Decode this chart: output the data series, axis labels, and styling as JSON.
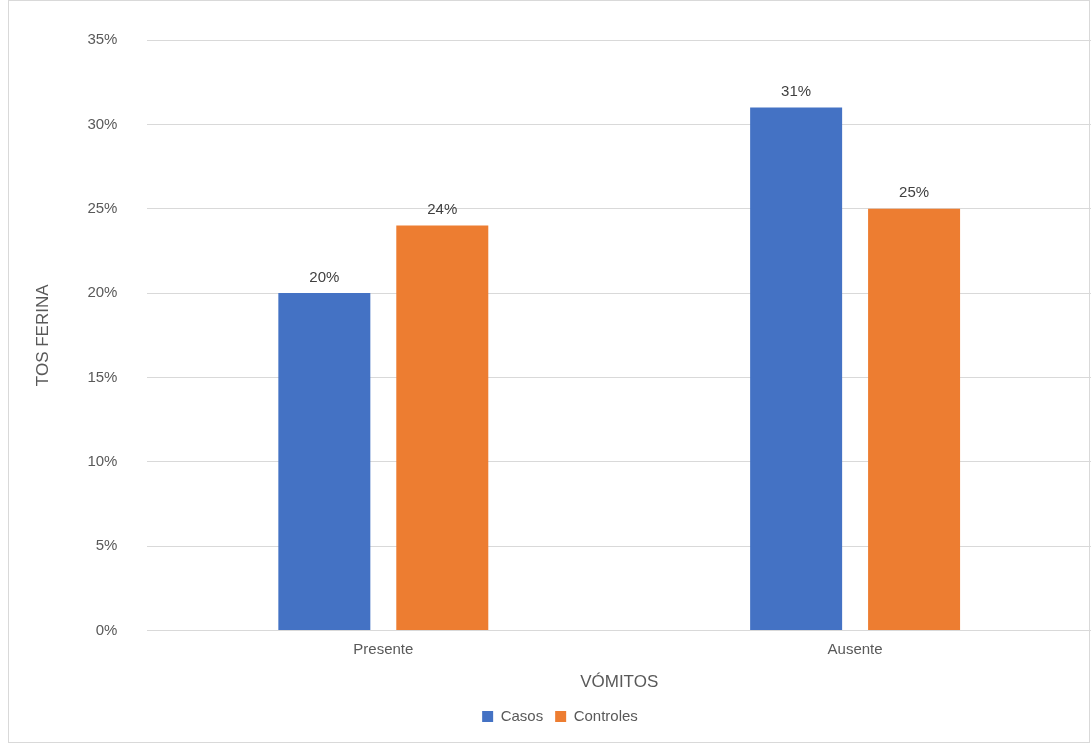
{
  "chart_data": {
    "type": "bar",
    "xlabel": "VÓMITOS",
    "ylabel": "TOS FERINA",
    "categories": [
      "Presente",
      "Ausente"
    ],
    "series": [
      {
        "name": "Casos",
        "color": "#4472c4",
        "values": [
          20,
          31
        ],
        "value_labels": [
          "20%",
          "31%"
        ]
      },
      {
        "name": "Controles",
        "color": "#ed7d31",
        "values": [
          24,
          25
        ],
        "value_labels": [
          "24%",
          "25%"
        ]
      }
    ],
    "ylim": [
      0,
      35
    ],
    "yticks": [
      {
        "value": 0,
        "label": "0%"
      },
      {
        "value": 5,
        "label": "5%"
      },
      {
        "value": 10,
        "label": "10%"
      },
      {
        "value": 15,
        "label": "15%"
      },
      {
        "value": 20,
        "label": "20%"
      },
      {
        "value": 25,
        "label": "25%"
      },
      {
        "value": 30,
        "label": "30%"
      },
      {
        "value": 35,
        "label": "35%"
      }
    ],
    "grid": "y",
    "legend": "bottom"
  }
}
